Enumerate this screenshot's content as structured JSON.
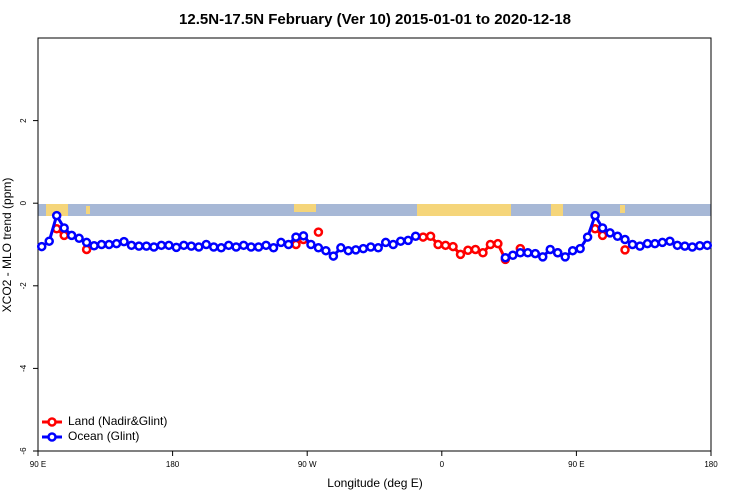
{
  "chart_data": {
    "type": "line",
    "title": "12.5N-17.5N February (Ver 10)   2015-01-01 to 2020-12-18",
    "x_label": "Longitude (deg E)",
    "y_label": "XCO2 - MLO trend (ppm)",
    "xlim": [
      90,
      540
    ],
    "ylim": [
      -6,
      4
    ],
    "xticks": [
      {
        "value": 90,
        "label": "90 E"
      },
      180,
      {
        "value": 270,
        "label": "90 W"
      },
      {
        "value": 360,
        "label": "0"
      },
      {
        "value": 450,
        "label": "90 E"
      },
      {
        "value": 540,
        "label": "180"
      }
    ],
    "yticks": [
      -6,
      -4,
      -2,
      0,
      2
    ],
    "grid": false,
    "legend": "bottomleft",
    "x": [
      92.5,
      97.5,
      102.5,
      107.5,
      112.5,
      117.5,
      122.5,
      127.5,
      132.5,
      137.5,
      142.5,
      147.5,
      152.5,
      157.5,
      162.5,
      167.5,
      172.5,
      177.5,
      182.5,
      187.5,
      192.5,
      197.5,
      202.5,
      207.5,
      212.5,
      217.5,
      222.5,
      227.5,
      232.5,
      237.5,
      242.5,
      247.5,
      252.5,
      257.5,
      262.5,
      267.5,
      272.5,
      277.5,
      282.5,
      287.5,
      292.5,
      297.5,
      302.5,
      307.5,
      312.5,
      317.5,
      322.5,
      327.5,
      332.5,
      337.5,
      342.5,
      347.5,
      352.5,
      357.5,
      362.5,
      367.5,
      372.5,
      377.5,
      382.5,
      387.5,
      392.5,
      397.5,
      402.5,
      407.5,
      412.5,
      417.5,
      422.5,
      427.5,
      432.5,
      437.5,
      442.5,
      447.5,
      452.5,
      457.5,
      462.5,
      467.5,
      472.5,
      477.5,
      482.5,
      487.5,
      492.5,
      497.5,
      502.5,
      507.5,
      512.5,
      517.5,
      522.5,
      527.5,
      532.5,
      537.5
    ],
    "series": [
      {
        "name": "Land (Nadir&Glint)",
        "color": "#ff0000",
        "values": [
          null,
          null,
          -0.62,
          -0.78,
          null,
          null,
          -1.12,
          null,
          null,
          null,
          null,
          null,
          null,
          null,
          null,
          null,
          null,
          null,
          null,
          null,
          null,
          null,
          null,
          null,
          null,
          null,
          null,
          null,
          null,
          null,
          null,
          null,
          null,
          null,
          -1.0,
          -0.88,
          null,
          -0.7,
          null,
          null,
          null,
          null,
          null,
          null,
          null,
          null,
          null,
          null,
          null,
          null,
          null,
          -0.82,
          -0.8,
          -1.0,
          -1.02,
          -1.05,
          -1.24,
          -1.14,
          -1.12,
          -1.2,
          -1.0,
          -0.98,
          -1.36,
          null,
          -1.1,
          null,
          null,
          null,
          null,
          -1.2,
          null,
          null,
          null,
          null,
          -0.62,
          -0.78,
          null,
          null,
          -1.13,
          null,
          null,
          null,
          null,
          null,
          null,
          null,
          null,
          null,
          null,
          null
        ]
      },
      {
        "name": "Ocean (Glint)",
        "color": "#0000ff",
        "values": [
          -1.05,
          -0.92,
          -0.3,
          -0.6,
          -0.78,
          -0.85,
          -0.95,
          -1.03,
          -1.0,
          -1.0,
          -0.98,
          -0.93,
          -1.02,
          -1.04,
          -1.04,
          -1.06,
          -1.02,
          -1.02,
          -1.07,
          -1.02,
          -1.04,
          -1.06,
          -1.0,
          -1.06,
          -1.08,
          -1.02,
          -1.06,
          -1.02,
          -1.06,
          -1.06,
          -1.02,
          -1.08,
          -0.95,
          -1.0,
          -0.82,
          -0.79,
          -1.0,
          -1.08,
          -1.15,
          -1.28,
          -1.08,
          -1.15,
          -1.13,
          -1.1,
          -1.06,
          -1.08,
          -0.95,
          -1.0,
          -0.92,
          -0.9,
          -0.8,
          null,
          null,
          null,
          null,
          null,
          null,
          null,
          null,
          null,
          null,
          null,
          -1.32,
          -1.26,
          -1.2,
          -1.2,
          -1.22,
          -1.3,
          -1.12,
          -1.2,
          -1.3,
          -1.15,
          -1.1,
          -0.82,
          -0.3,
          -0.6,
          -0.72,
          -0.8,
          -0.88,
          -1.0,
          -1.04,
          -0.98,
          -0.98,
          -0.95,
          -0.92,
          -1.02,
          -1.04,
          -1.06,
          -1.03,
          -1.02
        ]
      }
    ]
  }
}
